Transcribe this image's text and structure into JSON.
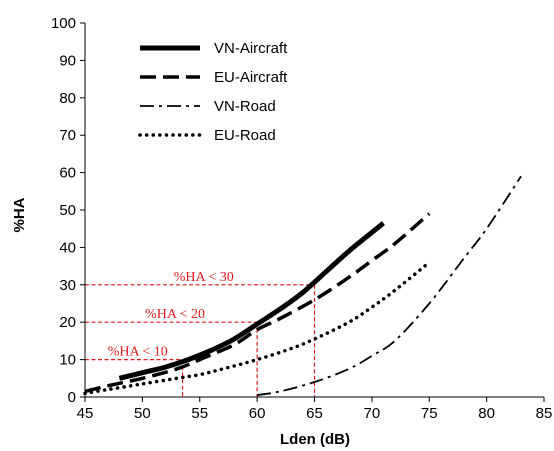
{
  "chart_data": {
    "type": "line",
    "xlabel": "Lden (dB)",
    "ylabel": "%HA",
    "xlim": [
      45,
      85
    ],
    "ylim": [
      0,
      100
    ],
    "xticks": [
      45,
      50,
      55,
      60,
      65,
      70,
      75,
      80,
      85
    ],
    "yticks": [
      0,
      10,
      20,
      30,
      40,
      50,
      60,
      70,
      80,
      90,
      100
    ],
    "grid": false,
    "legend_position": "top-left",
    "series": [
      {
        "name": "VN-Aircraft",
        "style": "solid-thick",
        "color": "#000000",
        "x": [
          48,
          50,
          52,
          54,
          56,
          58,
          60,
          62,
          64,
          66,
          68,
          70,
          71
        ],
        "y": [
          5,
          6.5,
          8,
          10,
          12.5,
          15.5,
          19.5,
          23.5,
          28,
          33.5,
          39,
          44,
          46.5
        ]
      },
      {
        "name": "EU-Aircraft",
        "style": "dashed",
        "color": "#000000",
        "x": [
          45,
          47,
          50,
          53,
          55,
          58,
          60,
          62,
          65,
          68,
          70,
          72,
          75
        ],
        "y": [
          1.5,
          3,
          5,
          7.5,
          10,
          14,
          18,
          21,
          26,
          32,
          36.5,
          41,
          49
        ]
      },
      {
        "name": "VN-Road",
        "style": "dash-dot",
        "color": "#000000",
        "x": [
          60,
          62,
          65,
          68,
          70,
          72,
          75,
          78,
          80,
          83
        ],
        "y": [
          0.5,
          1.5,
          4,
          7.5,
          11,
          15,
          25,
          37,
          45,
          59
        ]
      },
      {
        "name": "EU-Road",
        "style": "dotted",
        "color": "#000000",
        "x": [
          45,
          47,
          50,
          53,
          55,
          57,
          60,
          63,
          65,
          68,
          70,
          72,
          75
        ],
        "y": [
          1,
          2,
          3.5,
          5,
          6,
          7.5,
          10,
          13,
          15.5,
          20,
          24,
          28.5,
          36
        ]
      }
    ],
    "annotations": [
      {
        "text": "%HA < 10",
        "level": 10,
        "x_at": 53.5,
        "color": "#e41a1c"
      },
      {
        "text": "%HA < 20",
        "level": 20,
        "x_at": 60,
        "color": "#e41a1c"
      },
      {
        "text": "%HA < 30",
        "level": 30,
        "x_at": 65,
        "color": "#e41a1c"
      }
    ]
  }
}
